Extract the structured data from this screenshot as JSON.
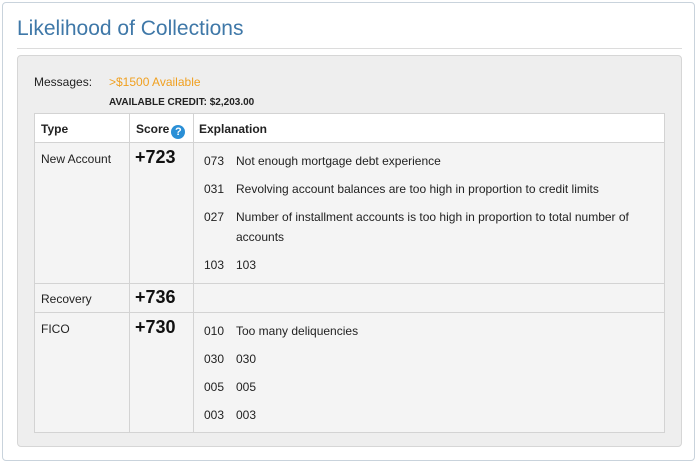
{
  "title": "Likelihood of Collections",
  "messages": {
    "label": "Messages:",
    "value": ">$1500 Available",
    "credit": "AVAILABLE CREDIT: $2,203.00"
  },
  "table": {
    "headers": {
      "type": "Type",
      "score": "Score",
      "explanation": "Explanation"
    },
    "help_icon": "?",
    "rows": [
      {
        "type": "New Account",
        "score": "+723",
        "reasons": [
          {
            "code": "073",
            "text": "Not enough mortgage debt experience"
          },
          {
            "code": "031",
            "text": "Revolving account balances are too high in proportion to credit limits"
          },
          {
            "code": "027",
            "text": "Number of installment accounts is too high in proportion to total number of accounts"
          },
          {
            "code": "103",
            "text": "103"
          }
        ]
      },
      {
        "type": "Recovery",
        "score": "+736",
        "reasons": []
      },
      {
        "type": "FICO",
        "score": "+730",
        "reasons": [
          {
            "code": "010",
            "text": "Too many deliquencies"
          },
          {
            "code": "030",
            "text": "030"
          },
          {
            "code": "005",
            "text": "005"
          },
          {
            "code": "003",
            "text": "003"
          }
        ]
      }
    ]
  },
  "colors": {
    "title": "#3f78a8",
    "accent": "#f0a020",
    "help": "#2a8fd6"
  }
}
